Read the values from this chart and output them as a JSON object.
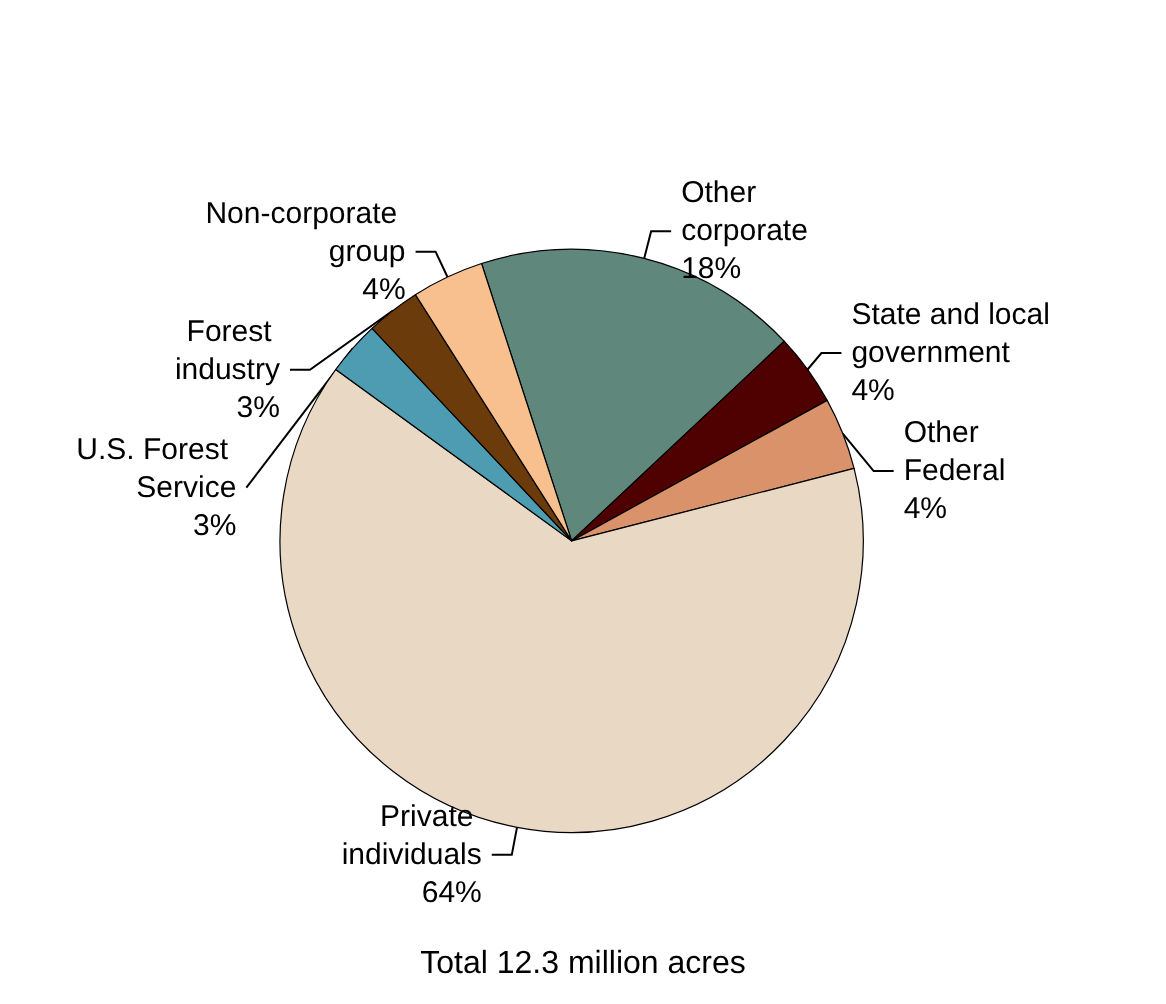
{
  "chart_data": {
    "type": "pie",
    "categories": [
      "Other corporate",
      "State and local government",
      "Other Federal",
      "Private individuals",
      "U.S. Forest Service",
      "Forest industry",
      "Non-corporate group"
    ],
    "values": [
      18,
      4,
      4,
      64,
      3,
      3,
      4
    ],
    "value_labels": [
      "18%",
      "4%",
      "4%",
      "64%",
      "3%",
      "3%",
      "4%"
    ],
    "colors": [
      "#5f877b",
      "#4f0000",
      "#d9926a",
      "#e8d8c4",
      "#4d9cb1",
      "#6b3b0b",
      "#f9c08f"
    ],
    "annotations": [
      "Total 12.3 million acres"
    ],
    "legend": false
  }
}
